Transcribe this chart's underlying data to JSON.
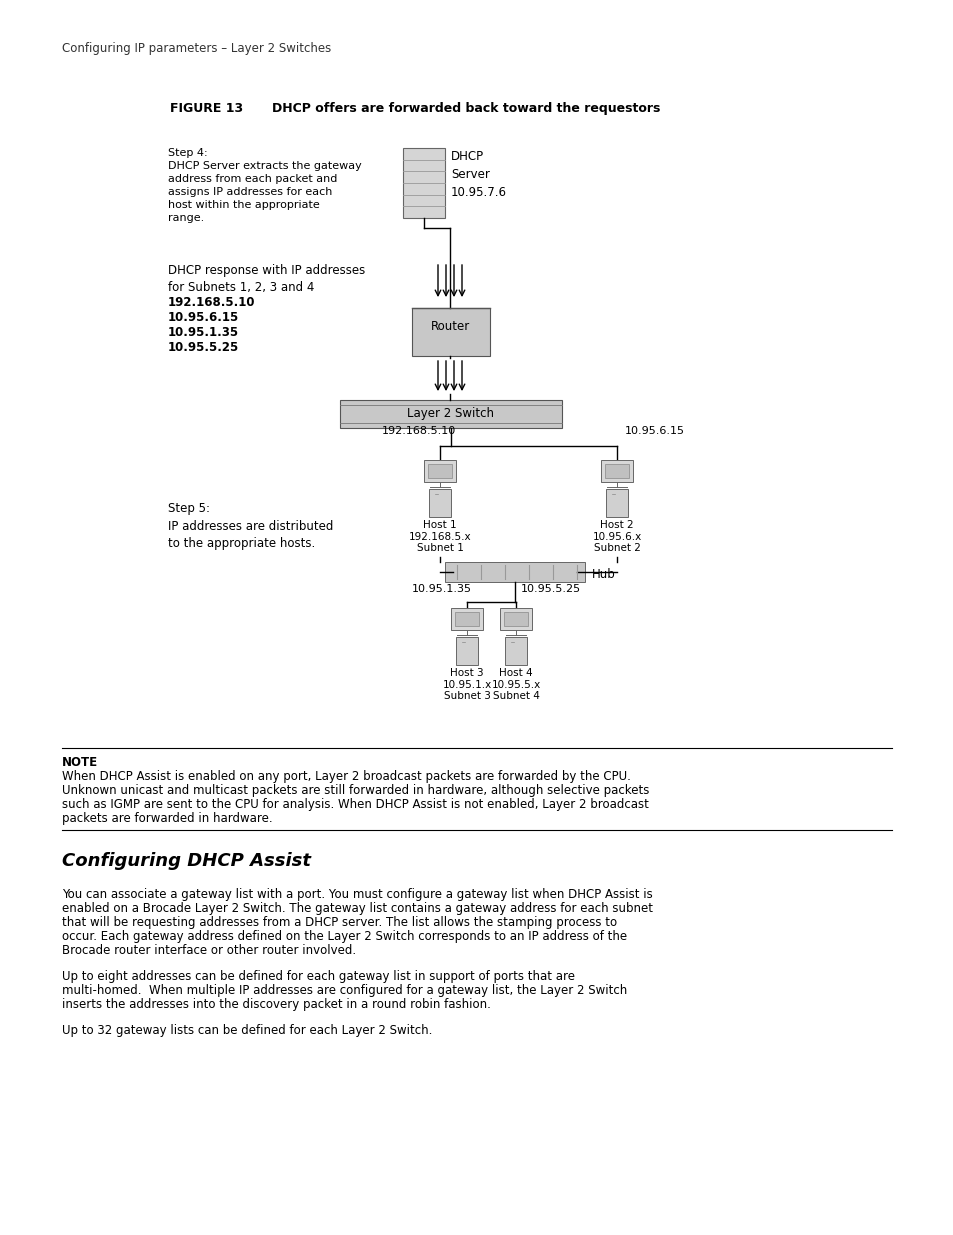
{
  "page_header": "Configuring IP parameters – Layer 2 Switches",
  "figure_label": "FIGURE 13",
  "figure_title": "DHCP offers are forwarded back toward the requestors",
  "step4_text": "Step 4:\nDHCP Server extracts the gateway\naddress from each packet and\nassigns IP addresses for each\nhost within the appropriate\nrange.",
  "dhcp_server_label": "DHCP\nServer\n10.95.7.6",
  "dhcp_response_text": "DHCP response with IP addresses\nfor Subnets 1, 2, 3 and 4",
  "ip_list_lines": [
    "192.168.5.10",
    "10.95.6.15",
    "10.95.1.35",
    "10.95.5.25"
  ],
  "router_label": "Router",
  "l2switch_label": "Layer 2 Switch",
  "step5_text": "Step 5:\nIP addresses are distributed\nto the appropriate hosts.",
  "host1_line1": "Host 1",
  "host1_line2": "192.168.5.x",
  "host1_line2b": "192.",
  "host1_line2bold": "168",
  "host1_line3": "Subnet 1",
  "host2_line1": "Host 2",
  "host2_line2": "10.95.6.x",
  "host2_line2b": "10.",
  "host2_line2bold": "95",
  "host2_line3": "Subnet 2",
  "host3_line1": "Host 3",
  "host3_line2": "10.95.1.x",
  "host3_line3": "Subnet 3",
  "host4_line1": "Host 4",
  "host4_line2": "10.95.5.x",
  "host4_line3": "Subnet 4",
  "hub_label": "Hub",
  "addr_host1": "192.168.5.10",
  "addr_host2": "10.95.6.15",
  "addr_host3": "10.95.1.35",
  "addr_host4": "10.95.5.25",
  "note_title": "NOTE",
  "note_text": "When DHCP Assist is enabled on any port, Layer 2 broadcast packets are forwarded by the CPU.\nUnknown unicast and multicast packets are still forwarded in hardware, although selective packets\nsuch as IGMP are sent to the CPU for analysis. When DHCP Assist is not enabled, Layer 2 broadcast\npackets are forwarded in hardware.",
  "section_title": "Configuring DHCP Assist",
  "para1_lines": [
    "You can associate a gateway list with a port. You must configure a gateway list when DHCP Assist is",
    "enabled on a Brocade Layer 2 Switch. The gateway list contains a gateway address for each subnet",
    "that will be requesting addresses from a DHCP server. The list allows the stamping process to",
    "occur. Each gateway address defined on the Layer 2 Switch corresponds to an IP address of the",
    "Brocade router interface or other router involved."
  ],
  "para2_lines": [
    "Up to eight addresses can be defined for each gateway list in support of ports that are",
    "multi-homed.  When multiple IP addresses are configured for a gateway list, the Layer 2 Switch",
    "inserts the addresses into the discovery packet in a round robin fashion."
  ],
  "para3": "Up to 32 gateway lists can be defined for each Layer 2 Switch.",
  "bg_color": "#ffffff",
  "text_color": "#000000",
  "gray_box": "#c8c8c8",
  "gray_server": "#d0d0d0"
}
